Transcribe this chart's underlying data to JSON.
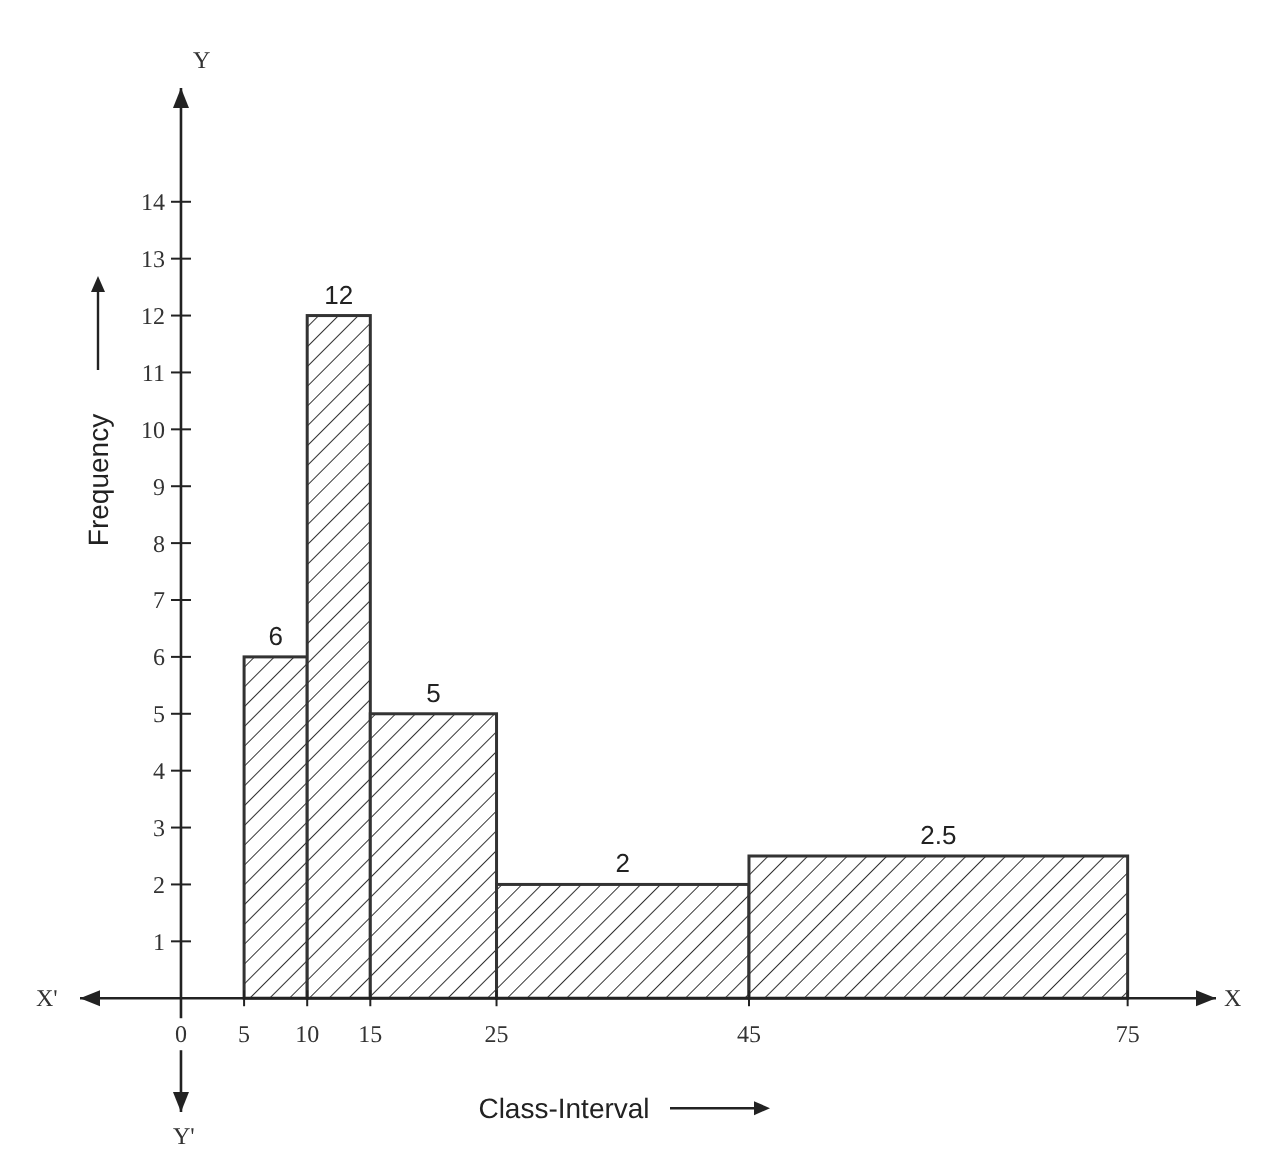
{
  "chart_data": {
    "type": "histogram",
    "xlabel": "Class-Interval",
    "ylabel": "Frequency",
    "bins": [
      5,
      10,
      15,
      25,
      45,
      75
    ],
    "values": [
      6,
      12,
      5,
      2,
      2.5
    ],
    "color": "#333333",
    "xlim": [
      -8,
      82
    ],
    "xticks": [
      0,
      5,
      10,
      15,
      25,
      45,
      75
    ],
    "ylim": [
      -2,
      16
    ],
    "yticks": [
      1,
      2,
      3,
      4,
      5,
      6,
      7,
      8,
      9,
      10,
      11,
      12,
      13,
      14
    ],
    "data_labels": true,
    "annotations": [
      "X",
      "X'",
      "Y",
      "Y'"
    ]
  }
}
